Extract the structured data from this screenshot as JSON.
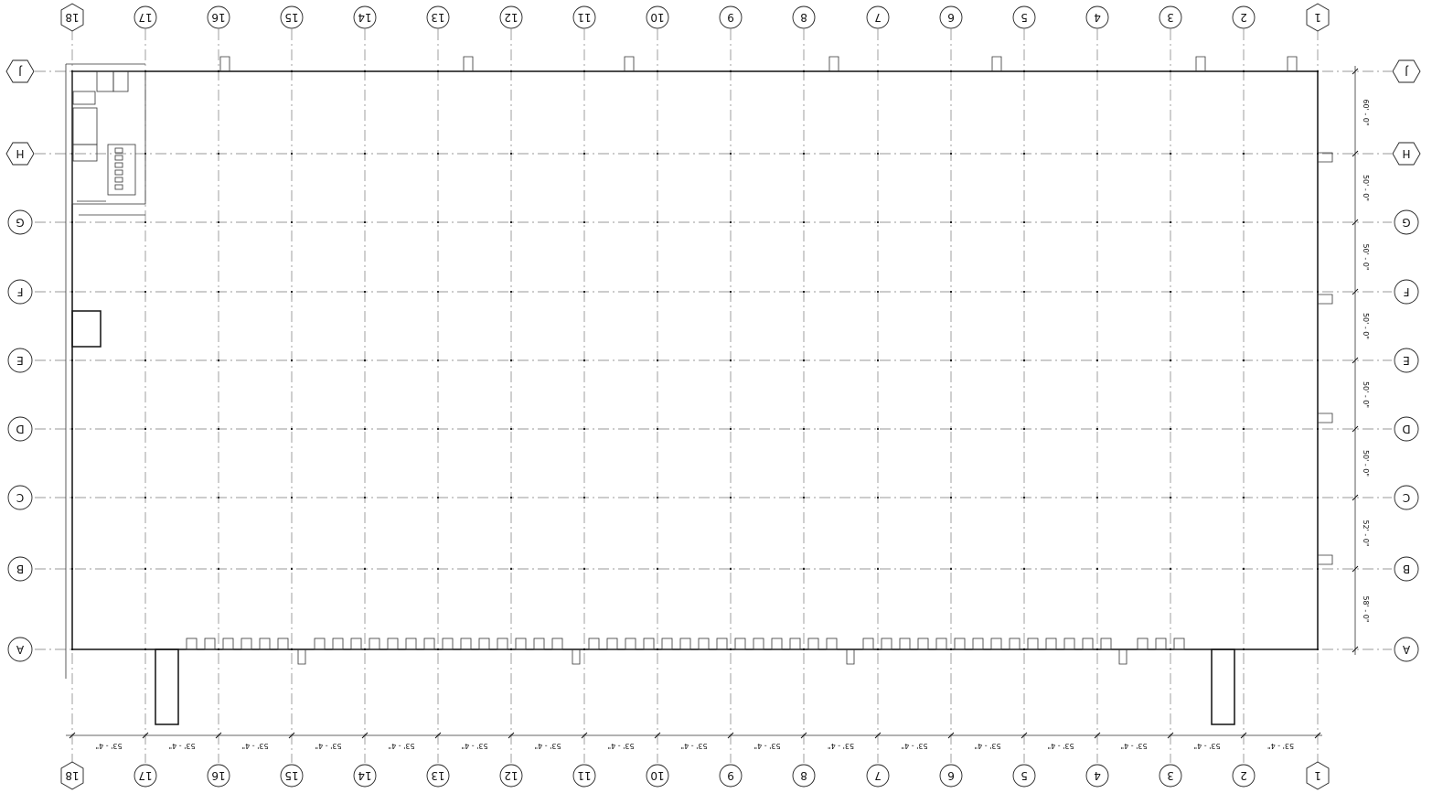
{
  "column_labels": [
    "18",
    "17",
    "16",
    "15",
    "14",
    "13",
    "12",
    "11",
    "10",
    "9",
    "8",
    "7",
    "6",
    "5",
    "4",
    "3",
    "2",
    "1"
  ],
  "row_labels": [
    "J",
    "H",
    "G",
    "F",
    "E",
    "D",
    "C",
    "B",
    "A"
  ],
  "bay_dimensions_horizontal": [
    "53' - 4\"",
    "53' - 4\"",
    "53' - 4\"",
    "53' - 4\"",
    "53' - 4\"",
    "53' - 4\"",
    "53' - 4\"",
    "53' - 4\"",
    "53' - 4\"",
    "53' - 4\"",
    "53' - 4\"",
    "53' - 4\"",
    "53' - 4\"",
    "53' - 4\"",
    "53' - 4\"",
    "53' - 4\"",
    "53' - 4\""
  ],
  "bay_dimensions_vertical": [
    "60' - 0\"",
    "50' - 0\"",
    "50' - 0\"",
    "50' - 0\"",
    "50' - 0\"",
    "50' - 0\"",
    "52' - 0\"",
    "58' - 0\""
  ],
  "colors": {
    "line": "#111111",
    "grid": "#777777",
    "background": "#ffffff"
  }
}
